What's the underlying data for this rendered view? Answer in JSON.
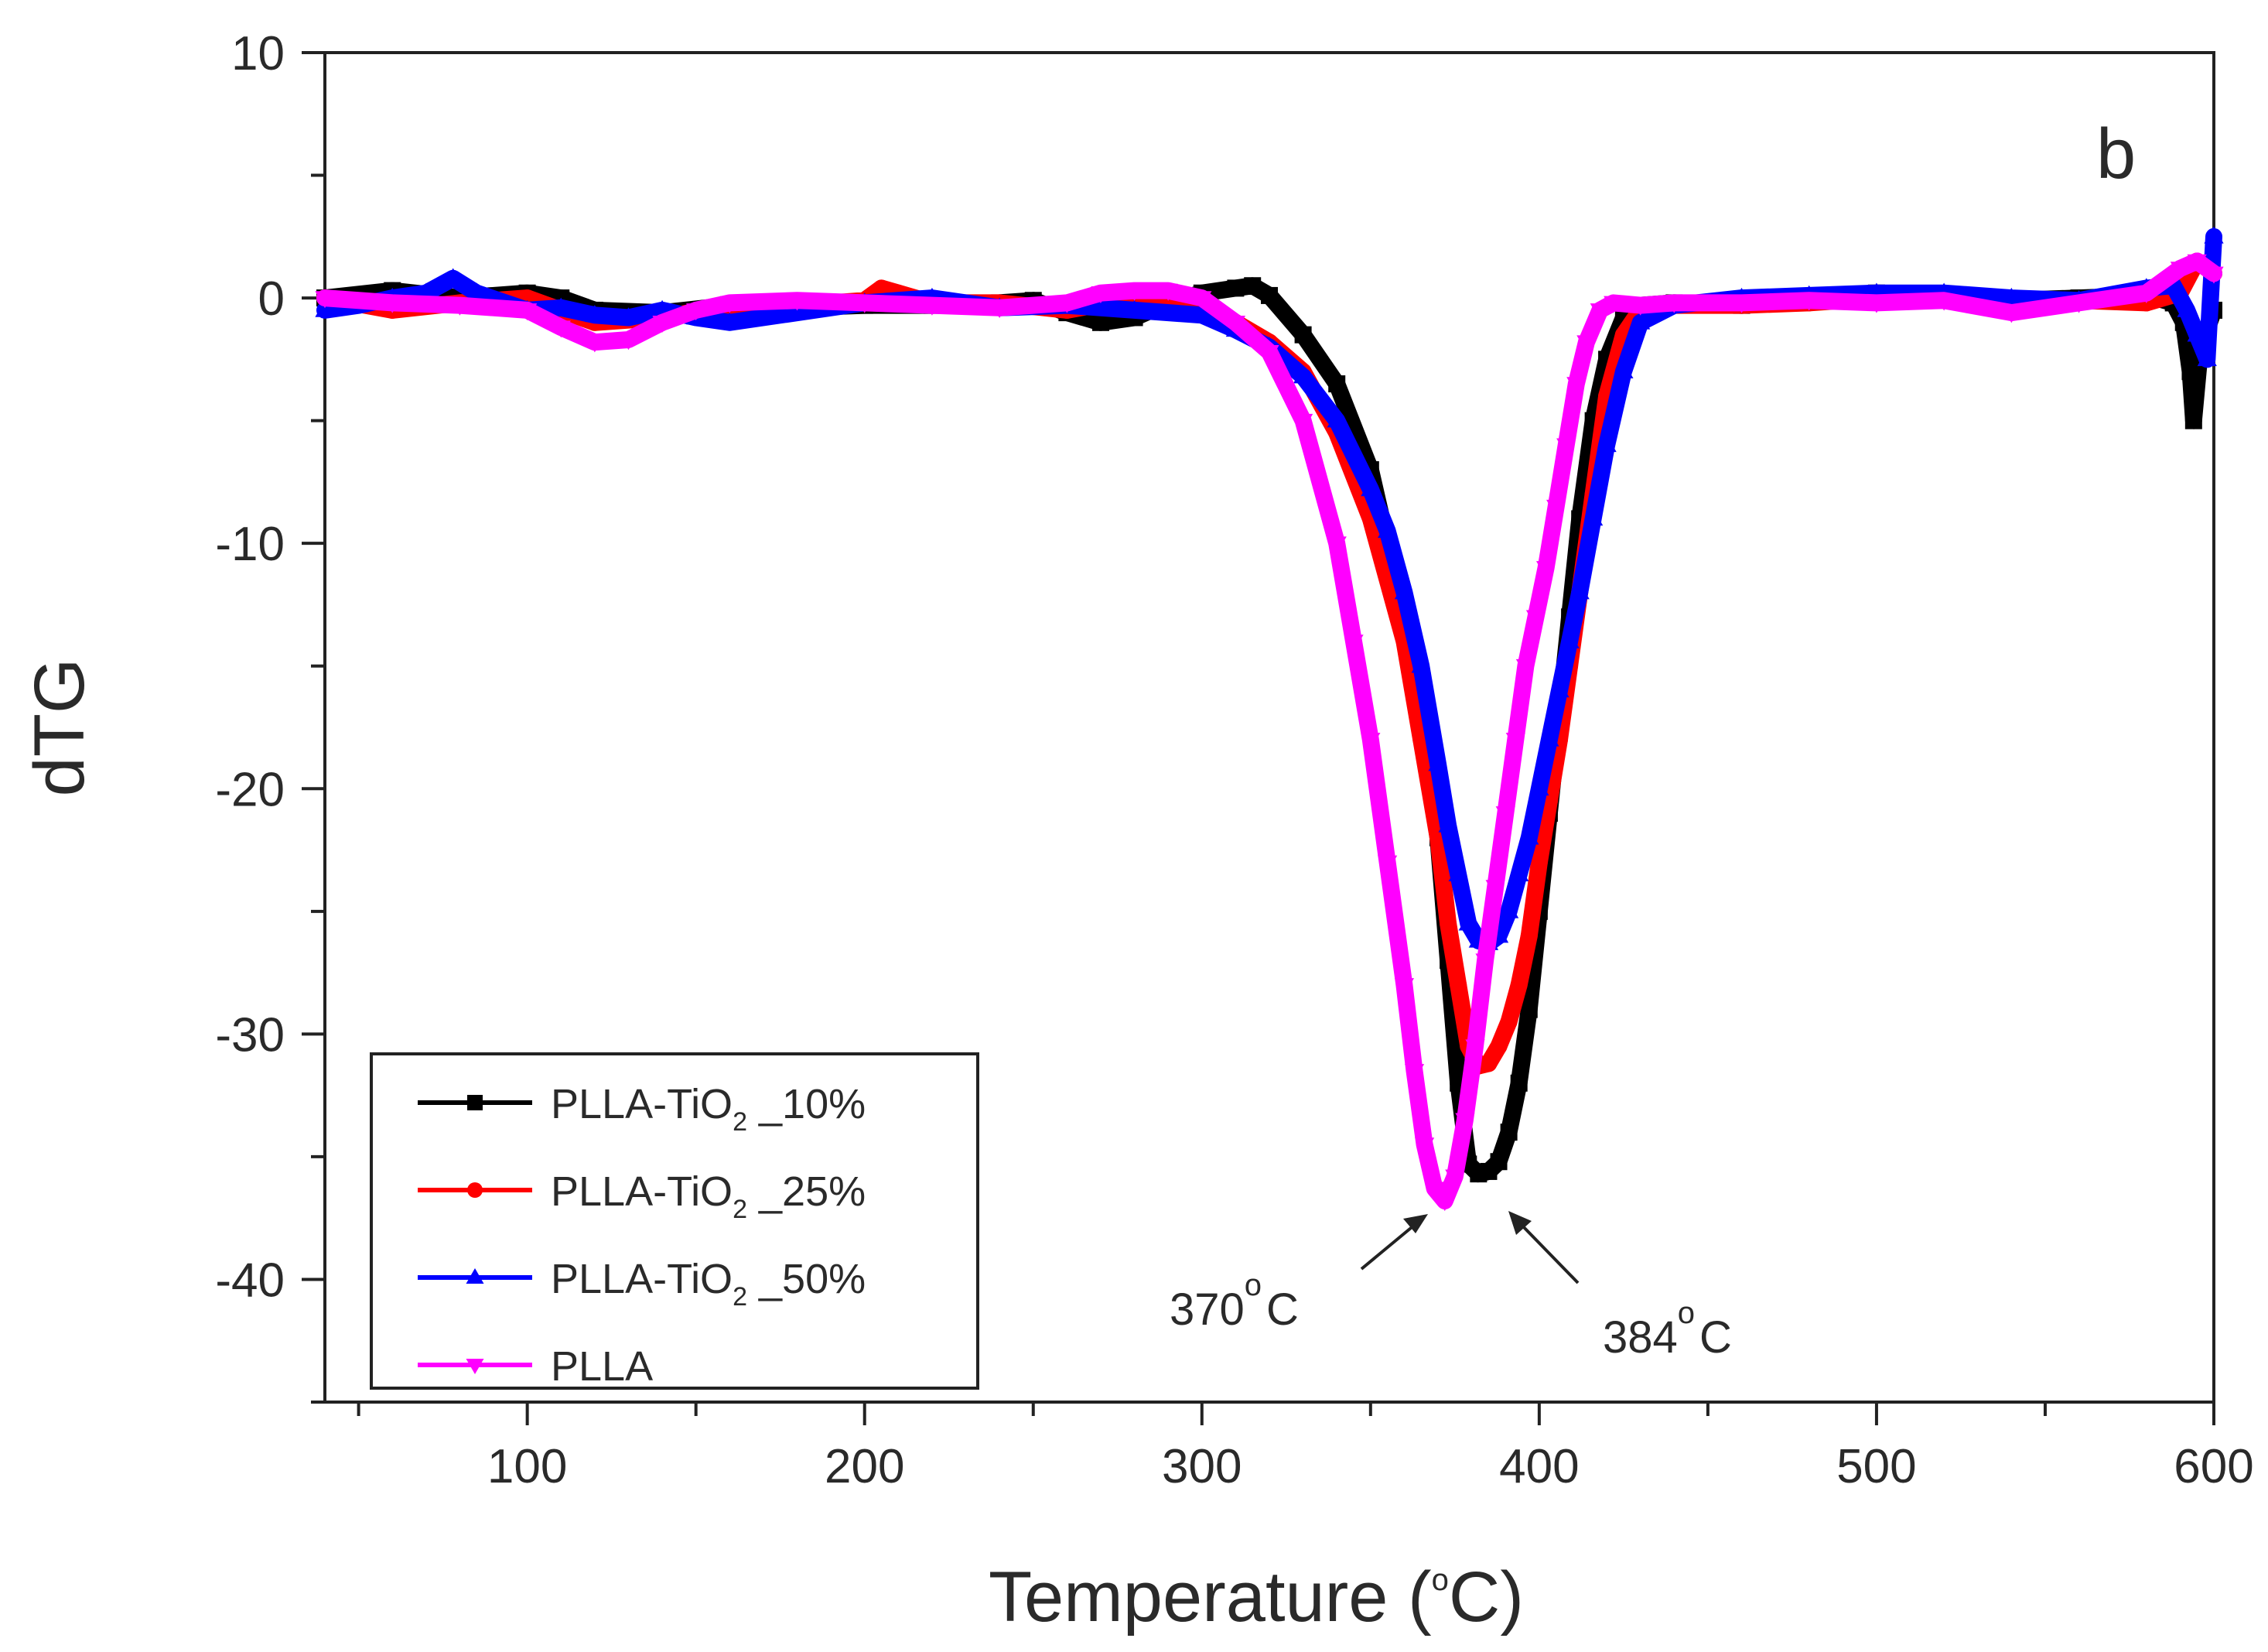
{
  "chart_data": {
    "type": "line",
    "title": "",
    "panel_label": "b",
    "xlabel": {
      "main": "Temperature (",
      "sup": "o",
      "unit": "C)"
    },
    "ylabel": "dTG",
    "xlim": [
      40,
      600
    ],
    "ylim": [
      -45,
      10
    ],
    "x_ticks": [
      100,
      200,
      300,
      400,
      500,
      600
    ],
    "y_ticks": [
      10,
      0,
      -10,
      -20,
      -30,
      -40
    ],
    "grid": false,
    "legend_position": "bottom-left",
    "series": [
      {
        "name": "PLLA-TiO2 _10%",
        "label_main": "PLLA-TiO",
        "label_sub": "2",
        "label_tail": " _10%",
        "color": "#000000",
        "marker": "square",
        "x": [
          40,
          60,
          80,
          100,
          110,
          120,
          140,
          160,
          180,
          200,
          220,
          240,
          250,
          260,
          270,
          280,
          290,
          300,
          310,
          315,
          320,
          330,
          340,
          350,
          360,
          365,
          370,
          373,
          376,
          379,
          382,
          385,
          388,
          391,
          394,
          397,
          400,
          403,
          406,
          409,
          412,
          416,
          420,
          425,
          430,
          440,
          460,
          480,
          500,
          520,
          540,
          560,
          580,
          588,
          591,
          593,
          594,
          596,
          600
        ],
        "y": [
          0,
          0.3,
          0,
          0.2,
          0,
          -0.5,
          -0.6,
          -0.3,
          -0.4,
          -0.3,
          -0.3,
          -0.2,
          -0.1,
          -0.6,
          -1.0,
          -0.8,
          -0.2,
          0.2,
          0.4,
          0.5,
          0.1,
          -1.5,
          -3.5,
          -7,
          -13,
          -17,
          -22,
          -27,
          -32,
          -35.3,
          -35.7,
          -35.6,
          -35.2,
          -34,
          -32,
          -29,
          -25,
          -21,
          -17,
          -13,
          -9,
          -5,
          -2.5,
          -0.8,
          -0.3,
          -0.2,
          -0.3,
          -0.1,
          0.2,
          0.1,
          -0.1,
          0,
          0.1,
          -0.2,
          -1,
          -3,
          -5,
          -2,
          -0.5
        ]
      },
      {
        "name": "PLLA-TiO2 _25%",
        "label_main": "PLLA-TiO",
        "label_sub": "2",
        "label_tail": " _25%",
        "color": "#ff0000",
        "marker": "circle",
        "x": [
          40,
          60,
          80,
          100,
          120,
          140,
          160,
          180,
          200,
          205,
          210,
          220,
          240,
          260,
          280,
          300,
          310,
          320,
          330,
          340,
          350,
          360,
          365,
          370,
          373,
          376,
          379,
          382,
          385,
          388,
          391,
          394,
          397,
          400,
          403,
          406,
          409,
          412,
          416,
          420,
          425,
          430,
          440,
          460,
          480,
          500,
          520,
          540,
          560,
          580,
          590,
          595,
          600
        ],
        "y": [
          0,
          -0.5,
          -0.2,
          0,
          -1.0,
          -0.8,
          -0.3,
          -0.3,
          -0.1,
          0.4,
          0.2,
          -0.2,
          -0.2,
          -0.5,
          0,
          -0.5,
          -1,
          -1.8,
          -3,
          -5.5,
          -9,
          -14,
          -18,
          -22,
          -25.5,
          -28,
          -30.5,
          -31.3,
          -31.2,
          -30.5,
          -29.5,
          -28,
          -26,
          -23,
          -20.5,
          -18,
          -15,
          -12,
          -8,
          -4,
          -1.5,
          -0.5,
          -0.3,
          -0.3,
          -0.2,
          0,
          -0.1,
          -0.3,
          -0.1,
          -0.2,
          0.2,
          1.5,
          1.0
        ]
      },
      {
        "name": "PLLA-TiO2 _50%",
        "label_main": "PLLA-TiO",
        "label_sub": "2",
        "label_tail": " _50%",
        "color": "#0000ff",
        "marker": "triangle-up",
        "x": [
          40,
          50,
          60,
          70,
          78,
          85,
          100,
          110,
          120,
          130,
          140,
          150,
          160,
          180,
          200,
          220,
          240,
          260,
          280,
          300,
          310,
          320,
          330,
          340,
          350,
          355,
          360,
          365,
          370,
          373,
          376,
          379,
          382,
          385,
          388,
          391,
          394,
          397,
          400,
          403,
          406,
          409,
          412,
          416,
          420,
          425,
          430,
          440,
          460,
          480,
          500,
          520,
          540,
          560,
          580,
          588,
          592,
          595,
          598,
          600
        ],
        "y": [
          -0.5,
          -0.3,
          0,
          0.2,
          0.8,
          0.2,
          -0.5,
          -0.4,
          -0.7,
          -0.8,
          -0.5,
          -0.8,
          -1.0,
          -0.6,
          -0.2,
          0,
          -0.4,
          -0.3,
          -0.5,
          -0.7,
          -1.3,
          -2,
          -3.2,
          -5,
          -7.8,
          -9.5,
          -12,
          -15,
          -19,
          -21.5,
          -23.5,
          -25.5,
          -26.2,
          -26.3,
          -26,
          -25,
          -23.5,
          -22,
          -20,
          -18,
          -16,
          -14,
          -12,
          -9,
          -6,
          -3,
          -1,
          -0.3,
          0,
          0.1,
          0.2,
          0.2,
          0,
          -0.1,
          0.4,
          0.5,
          -0.5,
          -1.5,
          -2.5,
          2.5
        ]
      },
      {
        "name": "PLLA",
        "label_main": "PLLA",
        "label_sub": "",
        "label_tail": "",
        "color": "#ff00ff",
        "marker": "triangle-down",
        "x": [
          40,
          60,
          80,
          100,
          110,
          120,
          130,
          140,
          150,
          160,
          180,
          200,
          220,
          240,
          260,
          270,
          280,
          290,
          300,
          310,
          320,
          330,
          340,
          345,
          350,
          355,
          360,
          363,
          366,
          369,
          372,
          375,
          378,
          381,
          384,
          387,
          390,
          393,
          396,
          399,
          402,
          405,
          408,
          411,
          414,
          418,
          422,
          430,
          440,
          460,
          480,
          500,
          520,
          540,
          560,
          580,
          590,
          595,
          600
        ],
        "y": [
          0,
          -0.2,
          -0.3,
          -0.5,
          -1.2,
          -1.8,
          -1.7,
          -1.0,
          -0.5,
          -0.2,
          -0.1,
          -0.2,
          -0.3,
          -0.4,
          -0.2,
          0.2,
          0.3,
          0.3,
          0,
          -1,
          -2.2,
          -5,
          -10,
          -14,
          -18,
          -23,
          -28,
          -31.5,
          -34.5,
          -36.3,
          -36.8,
          -35.8,
          -33.5,
          -30.5,
          -27,
          -24,
          -21,
          -18,
          -15,
          -13,
          -11,
          -8.5,
          -6,
          -3.5,
          -1.8,
          -0.5,
          -0.2,
          -0.3,
          -0.2,
          -0.2,
          -0.1,
          -0.2,
          -0.1,
          -0.6,
          -0.2,
          0.2,
          1.2,
          1.5,
          1.0
        ]
      }
    ],
    "annotations": [
      {
        "id": "peak-370",
        "value": "370",
        "sup": "o",
        "unit": "C",
        "points_to": [
          370,
          -37
        ]
      },
      {
        "id": "peak-384",
        "value": "384",
        "sup": "o",
        "unit": "C",
        "points_to": [
          384,
          -36.5
        ]
      }
    ]
  }
}
